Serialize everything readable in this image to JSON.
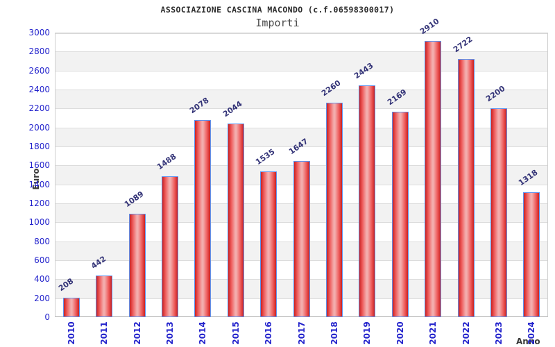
{
  "chart_data": {
    "type": "bar",
    "title": "ASSOCIAZIONE CASCINA MACONDO (c.f.06598300017)",
    "subtitle": "Importi",
    "xlabel": "Anno",
    "ylabel": "Euro",
    "categories": [
      "2010",
      "2011",
      "2012",
      "2013",
      "2014",
      "2015",
      "2016",
      "2017",
      "2018",
      "2019",
      "2020",
      "2021",
      "2022",
      "2023",
      "2024"
    ],
    "values": [
      208,
      442,
      1089,
      1488,
      2078,
      2044,
      1535,
      1647,
      2260,
      2443,
      2169,
      2910,
      2722,
      2200,
      1318
    ],
    "ylim": [
      0,
      3000
    ],
    "ytick_step": 200,
    "grid": "horizontal gridlines with alternating gray bands",
    "legend": "none",
    "bar_value_labels": "shown above bars, rotated",
    "xtick_rotation": "vertical"
  },
  "colors": {
    "title": "#2b2b2b",
    "subtitle": "#4a4a4a",
    "tick_label": "#2323cc",
    "value_label": "#333377",
    "axis_title": "#3a3a3a",
    "band_gray": "#f2f2f2",
    "gridline": "#dcdcdc",
    "bar_border": "#5e93ee",
    "bar_fill_dark": "#c92121",
    "bar_fill_mid": "#ee5b5b",
    "bar_fill_light": "#f3adad"
  }
}
